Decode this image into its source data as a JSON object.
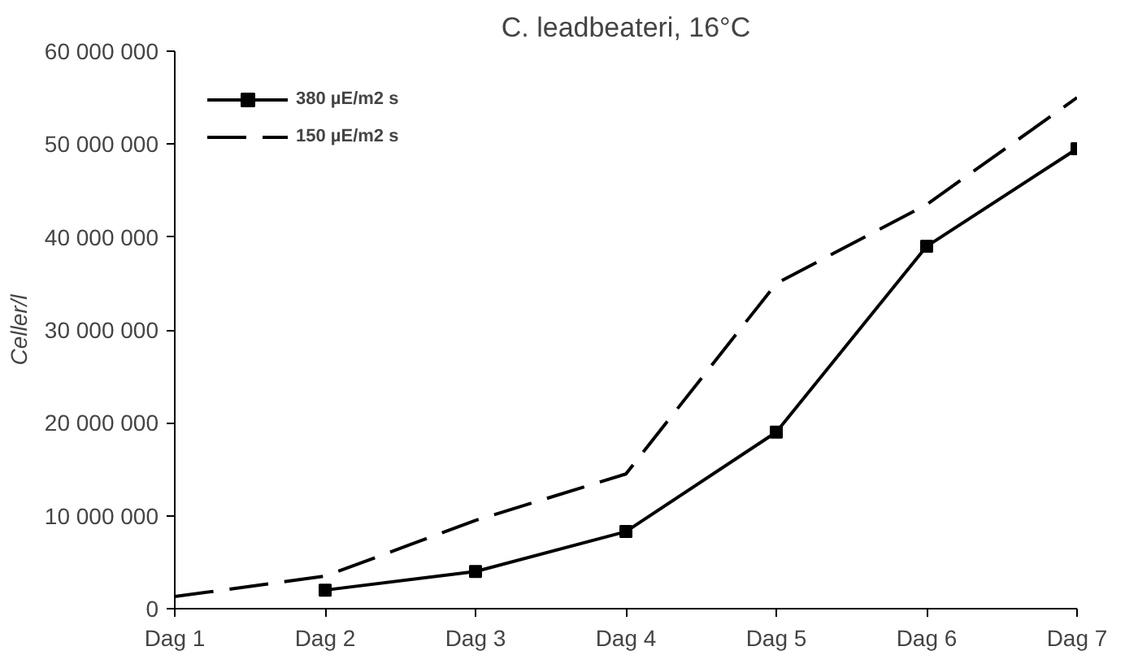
{
  "chart_data": {
    "type": "line",
    "title": "C. leadbeateri, 16°C",
    "ylabel": "Celler/l",
    "categories": [
      "Dag 1",
      "Dag 2",
      "Dag 3",
      "Dag 4",
      "Dag 5",
      "Dag 6",
      "Dag 7"
    ],
    "series": [
      {
        "name": "380 µE/m2 s",
        "color": "#000000",
        "marker": "square",
        "line_style": "solid",
        "values": [
          null,
          2000000,
          4000000,
          8300000,
          19000000,
          39000000,
          49500000
        ]
      },
      {
        "name": "150 µE/m2 s",
        "color": "#000000",
        "marker": "none",
        "line_style": "dashed",
        "values": [
          1300000,
          3500000,
          9500000,
          14500000,
          35000000,
          43500000,
          55000000
        ]
      }
    ],
    "ylim": [
      0,
      60000000
    ],
    "yticks": [
      {
        "value": 0,
        "label": "0"
      },
      {
        "value": 10000000,
        "label": "10 000 000"
      },
      {
        "value": 20000000,
        "label": "20 000 000"
      },
      {
        "value": 30000000,
        "label": "30 000 000"
      },
      {
        "value": 40000000,
        "label": "40 000 000"
      },
      {
        "value": 50000000,
        "label": "50 000 000"
      },
      {
        "value": 60000000,
        "label": "60 000 000"
      }
    ],
    "grid": false,
    "legend": "top left"
  }
}
